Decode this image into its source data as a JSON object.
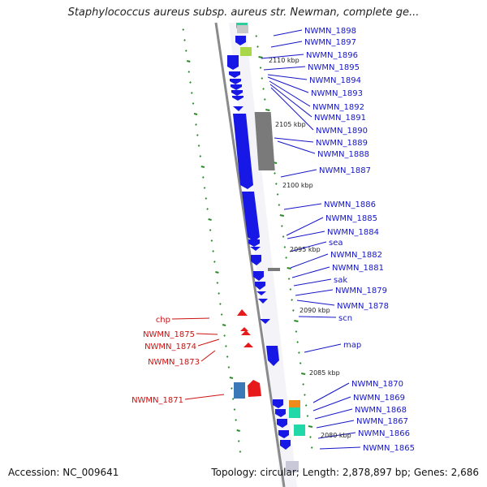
{
  "title": "Staphylococcus aureus subsp. aureus str. Newman, complete ge...",
  "accession": "Accession: NC_009641",
  "summary": "Topology: circular; Length: 2,878,897 bp; Genes: 2,686",
  "colors": {
    "forward_gene": "#1818e6",
    "reverse_gene": "#e61a1a",
    "backbone": "#8a8a8a",
    "tick": "#2a8a2a",
    "label_forward": "#1515c8",
    "label_reverse": "#cc1111"
  },
  "kbp_labels": [
    "2110 kbp",
    "2105 kbp",
    "2100 kbp",
    "2095 kbp",
    "2090 kbp",
    "2085 kbp",
    "2080 kbp"
  ],
  "right_labels": [
    "NWMN_1898",
    "NWMN_1897",
    "NWMN_1896",
    "NWMN_1895",
    "NWMN_1894",
    "NWMN_1893",
    "NWMN_1892",
    "NWMN_1891",
    "NWMN_1890",
    "NWMN_1889",
    "NWMN_1888",
    "NWMN_1887",
    "NWMN_1886",
    "NWMN_1885",
    "NWMN_1884",
    "sea",
    "NWMN_1882",
    "NWMN_1881",
    "sak",
    "NWMN_1879",
    "NWMN_1878",
    "scn",
    "map",
    "NWMN_1870",
    "NWMN_1869",
    "NWMN_1868",
    "NWMN_1867",
    "NWMN_1866",
    "NWMN_1865"
  ],
  "left_labels": [
    "chp",
    "NWMN_1875",
    "NWMN_1874",
    "NWMN_1873",
    "NWMN_1871"
  ]
}
